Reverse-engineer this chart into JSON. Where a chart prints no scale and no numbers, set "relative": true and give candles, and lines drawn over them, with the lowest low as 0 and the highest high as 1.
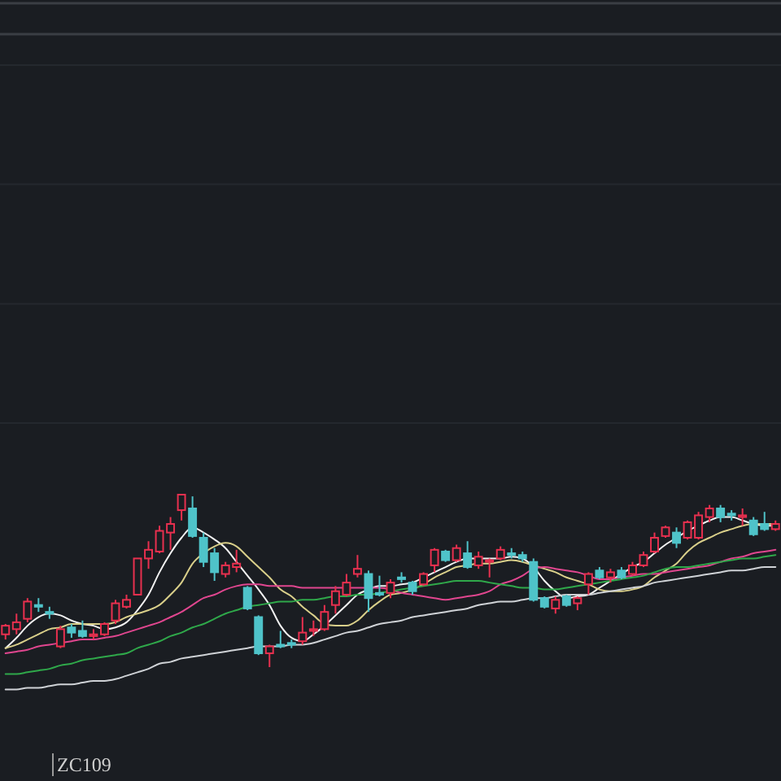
{
  "chart_data": {
    "type": "candlestick",
    "relative": true,
    "categories": [
      null,
      null,
      null,
      null,
      null,
      null,
      null,
      null,
      null,
      null,
      null,
      null,
      null,
      null,
      null,
      null,
      null,
      null,
      null,
      null,
      null,
      null,
      null,
      null,
      null,
      null,
      null,
      null,
      null,
      null,
      null,
      null,
      null,
      null,
      null,
      null,
      null,
      null,
      null,
      null,
      null,
      null,
      null,
      null,
      null,
      null,
      null,
      null,
      null,
      null,
      null,
      null,
      null,
      null,
      null,
      null,
      null,
      null,
      null,
      null,
      null,
      null,
      null,
      null,
      null,
      null,
      null,
      null,
      null,
      null,
      null
    ],
    "ohlc": [
      [
        0.19,
        0.25,
        0.16,
        0.24
      ],
      [
        0.22,
        0.31,
        0.19,
        0.26
      ],
      [
        0.28,
        0.4,
        0.26,
        0.38
      ],
      [
        0.36,
        0.4,
        0.32,
        0.35
      ],
      [
        0.32,
        0.35,
        0.28,
        0.31
      ],
      [
        0.12,
        0.24,
        0.11,
        0.22
      ],
      [
        0.23,
        0.25,
        0.17,
        0.2
      ],
      [
        0.21,
        0.27,
        0.17,
        0.18
      ],
      [
        0.18,
        0.22,
        0.16,
        0.19
      ],
      [
        0.19,
        0.26,
        0.18,
        0.25
      ],
      [
        0.27,
        0.39,
        0.25,
        0.37
      ],
      [
        0.35,
        0.42,
        0.34,
        0.39
      ],
      [
        0.42,
        0.63,
        0.42,
        0.63
      ],
      [
        0.63,
        0.73,
        0.57,
        0.68
      ],
      [
        0.67,
        0.82,
        0.66,
        0.79
      ],
      [
        0.78,
        0.87,
        0.68,
        0.83
      ],
      [
        0.91,
        1,
        0.85,
        1
      ],
      [
        0.92,
        0.99,
        0.75,
        0.76
      ],
      [
        0.75,
        0.78,
        0.58,
        0.61
      ],
      [
        0.66,
        0.69,
        0.5,
        0.55
      ],
      [
        0.54,
        0.61,
        0.52,
        0.59
      ],
      [
        0.58,
        0.68,
        0.55,
        0.6
      ],
      [
        0.46,
        0.47,
        0.33,
        0.34
      ],
      [
        0.29,
        0.3,
        0.07,
        0.08
      ],
      [
        0.08,
        0.13,
        0,
        0.12
      ],
      [
        0.13,
        0.21,
        0.11,
        0.12
      ],
      [
        0.14,
        0.16,
        0.11,
        0.13
      ],
      [
        0.15,
        0.29,
        0.13,
        0.2
      ],
      [
        0.21,
        0.27,
        0.18,
        0.22
      ],
      [
        0.22,
        0.36,
        0.21,
        0.32
      ],
      [
        0.36,
        0.47,
        0.31,
        0.44
      ],
      [
        0.42,
        0.54,
        0.41,
        0.49
      ],
      [
        0.54,
        0.65,
        0.52,
        0.57
      ],
      [
        0.54,
        0.56,
        0.32,
        0.4
      ],
      [
        0.43,
        0.53,
        0.41,
        0.42
      ],
      [
        0.43,
        0.51,
        0.4,
        0.49
      ],
      [
        0.52,
        0.55,
        0.49,
        0.51
      ],
      [
        0.49,
        0.5,
        0.42,
        0.44
      ],
      [
        0.48,
        0.55,
        0.47,
        0.54
      ],
      [
        0.59,
        0.69,
        0.55,
        0.68
      ],
      [
        0.67,
        0.68,
        0.61,
        0.62
      ],
      [
        0.62,
        0.71,
        0.61,
        0.69
      ],
      [
        0.66,
        0.73,
        0.57,
        0.58
      ],
      [
        0.59,
        0.67,
        0.57,
        0.64
      ],
      [
        0.61,
        0.63,
        0.52,
        0.62
      ],
      [
        0.63,
        0.7,
        0.62,
        0.68
      ],
      [
        0.66,
        0.69,
        0.63,
        0.65
      ],
      [
        0.65,
        0.67,
        0.61,
        0.63
      ],
      [
        0.61,
        0.63,
        0.38,
        0.39
      ],
      [
        0.4,
        0.41,
        0.34,
        0.35
      ],
      [
        0.34,
        0.41,
        0.31,
        0.39
      ],
      [
        0.41,
        0.42,
        0.35,
        0.36
      ],
      [
        0.37,
        0.41,
        0.33,
        0.4
      ],
      [
        0.48,
        0.55,
        0.42,
        0.54
      ],
      [
        0.56,
        0.58,
        0.51,
        0.52
      ],
      [
        0.52,
        0.57,
        0.49,
        0.55
      ],
      [
        0.56,
        0.58,
        0.51,
        0.52
      ],
      [
        0.54,
        0.61,
        0.53,
        0.59
      ],
      [
        0.59,
        0.67,
        0.58,
        0.65
      ],
      [
        0.67,
        0.78,
        0.66,
        0.75
      ],
      [
        0.76,
        0.82,
        0.75,
        0.81
      ],
      [
        0.78,
        0.81,
        0.69,
        0.72
      ],
      [
        0.75,
        0.85,
        0.74,
        0.84
      ],
      [
        0.75,
        0.9,
        0.74,
        0.88
      ],
      [
        0.87,
        0.94,
        0.84,
        0.92
      ],
      [
        0.92,
        0.94,
        0.84,
        0.87
      ],
      [
        0.89,
        0.91,
        0.85,
        0.88
      ],
      [
        0.87,
        0.92,
        0.82,
        0.88
      ],
      [
        0.85,
        0.87,
        0.76,
        0.77
      ],
      [
        0.83,
        0.9,
        0.79,
        0.8
      ],
      [
        0.8,
        0.85,
        0.79,
        0.83
      ]
    ],
    "colors": [
      "#e8304f",
      "#e8304f",
      "#e8304f",
      "#4fc3c9",
      "#4fc3c9",
      "#e8304f",
      "#4fc3c9",
      "#4fc3c9",
      "#e8304f",
      "#e8304f",
      "#e8304f",
      "#e8304f",
      "#e8304f",
      "#e8304f",
      "#e8304f",
      "#e8304f",
      "#e8304f",
      "#4fc3c9",
      "#4fc3c9",
      "#4fc3c9",
      "#e8304f",
      "#e8304f",
      "#4fc3c9",
      "#4fc3c9",
      "#e8304f",
      "#4fc3c9",
      "#4fc3c9",
      "#e8304f",
      "#e8304f",
      "#e8304f",
      "#e8304f",
      "#e8304f",
      "#e8304f",
      "#4fc3c9",
      "#4fc3c9",
      "#e8304f",
      "#4fc3c9",
      "#4fc3c9",
      "#e8304f",
      "#e8304f",
      "#4fc3c9",
      "#e8304f",
      "#4fc3c9",
      "#e8304f",
      "#e8304f",
      "#e8304f",
      "#4fc3c9",
      "#4fc3c9",
      "#4fc3c9",
      "#4fc3c9",
      "#e8304f",
      "#4fc3c9",
      "#e8304f",
      "#e8304f",
      "#4fc3c9",
      "#e8304f",
      "#4fc3c9",
      "#e8304f",
      "#e8304f",
      "#e8304f",
      "#e8304f",
      "#4fc3c9",
      "#e8304f",
      "#e8304f",
      "#e8304f",
      "#4fc3c9",
      "#4fc3c9",
      "#e8304f",
      "#4fc3c9",
      "#4fc3c9",
      "#e8304f"
    ],
    "series": [
      {
        "type": "line",
        "color": "#f2f2f2",
        "values": [
          0.11,
          0.17,
          0.24,
          0.29,
          0.31,
          0.3,
          0.27,
          0.25,
          0.24,
          0.22,
          0.23,
          0.26,
          0.33,
          0.42,
          0.55,
          0.66,
          0.75,
          0.81,
          0.78,
          0.74,
          0.69,
          0.61,
          0.53,
          0.45,
          0.36,
          0.24,
          0.17,
          0.15,
          0.19,
          0.24,
          0.3,
          0.36,
          0.42,
          0.45,
          0.47,
          0.47,
          0.48,
          0.49,
          0.52,
          0.55,
          0.58,
          0.61,
          0.63,
          0.63,
          0.63,
          0.63,
          0.64,
          0.63,
          0.58,
          0.5,
          0.44,
          0.4,
          0.41,
          0.42,
          0.46,
          0.5,
          0.54,
          0.58,
          0.61,
          0.66,
          0.71,
          0.75,
          0.79,
          0.82,
          0.85,
          0.87,
          0.87,
          0.85,
          0.83,
          0.82,
          0.82
        ]
      },
      {
        "type": "line",
        "color": "#d9cf8a",
        "values": [
          0.11,
          0.13,
          0.16,
          0.19,
          0.22,
          0.23,
          0.25,
          0.25,
          0.25,
          0.25,
          0.26,
          0.29,
          0.31,
          0.33,
          0.36,
          0.42,
          0.49,
          0.6,
          0.66,
          0.7,
          0.72,
          0.7,
          0.64,
          0.58,
          0.52,
          0.45,
          0.41,
          0.35,
          0.3,
          0.25,
          0.24,
          0.24,
          0.27,
          0.33,
          0.38,
          0.42,
          0.43,
          0.45,
          0.48,
          0.52,
          0.55,
          0.58,
          0.59,
          0.6,
          0.6,
          0.61,
          0.62,
          0.61,
          0.59,
          0.57,
          0.55,
          0.52,
          0.5,
          0.48,
          0.45,
          0.44,
          0.44,
          0.45,
          0.47,
          0.52,
          0.56,
          0.6,
          0.67,
          0.72,
          0.75,
          0.78,
          0.8,
          0.82,
          0.83,
          0.83,
          0.83
        ]
      },
      {
        "type": "line",
        "color": "#e0468f",
        "values": [
          0.08,
          0.09,
          0.1,
          0.12,
          0.13,
          0.14,
          0.15,
          0.16,
          0.16,
          0.17,
          0.18,
          0.2,
          0.22,
          0.24,
          0.26,
          0.29,
          0.32,
          0.36,
          0.4,
          0.42,
          0.45,
          0.47,
          0.48,
          0.48,
          0.47,
          0.47,
          0.47,
          0.46,
          0.46,
          0.46,
          0.46,
          0.46,
          0.46,
          0.46,
          0.46,
          0.45,
          0.43,
          0.42,
          0.41,
          0.4,
          0.39,
          0.4,
          0.41,
          0.42,
          0.44,
          0.48,
          0.5,
          0.53,
          0.57,
          0.58,
          0.57,
          0.56,
          0.55,
          0.53,
          0.51,
          0.51,
          0.52,
          0.53,
          0.54,
          0.54,
          0.55,
          0.56,
          0.57,
          0.58,
          0.59,
          0.61,
          0.63,
          0.64,
          0.66,
          0.67,
          0.68
        ]
      },
      {
        "type": "line",
        "color": "#2fa84a",
        "values": [
          -0.04,
          -0.04,
          -0.03,
          -0.02,
          -0.01,
          0.01,
          0.02,
          0.04,
          0.05,
          0.06,
          0.07,
          0.08,
          0.11,
          0.13,
          0.15,
          0.18,
          0.2,
          0.23,
          0.25,
          0.28,
          0.31,
          0.33,
          0.35,
          0.36,
          0.37,
          0.38,
          0.38,
          0.39,
          0.39,
          0.4,
          0.41,
          0.41,
          0.42,
          0.42,
          0.43,
          0.44,
          0.45,
          0.46,
          0.47,
          0.48,
          0.49,
          0.5,
          0.5,
          0.5,
          0.49,
          0.48,
          0.47,
          0.46,
          0.46,
          0.45,
          0.45,
          0.46,
          0.47,
          0.48,
          0.49,
          0.5,
          0.51,
          0.52,
          0.53,
          0.55,
          0.57,
          0.58,
          0.58,
          0.59,
          0.6,
          0.61,
          0.62,
          0.63,
          0.63,
          0.64,
          0.65
        ]
      },
      {
        "type": "line",
        "color": "#cfd2d6",
        "values": [
          -0.13,
          -0.13,
          -0.12,
          -0.12,
          -0.11,
          -0.1,
          -0.1,
          -0.09,
          -0.08,
          -0.08,
          -0.07,
          -0.05,
          -0.03,
          -0.01,
          0.02,
          0.03,
          0.05,
          0.06,
          0.07,
          0.08,
          0.09,
          0.1,
          0.11,
          0.12,
          0.12,
          0.12,
          0.13,
          0.13,
          0.14,
          0.16,
          0.18,
          0.2,
          0.21,
          0.23,
          0.25,
          0.26,
          0.27,
          0.29,
          0.3,
          0.31,
          0.32,
          0.33,
          0.34,
          0.36,
          0.37,
          0.38,
          0.38,
          0.39,
          0.4,
          0.4,
          0.41,
          0.42,
          0.42,
          0.42,
          0.43,
          0.44,
          0.45,
          0.46,
          0.47,
          0.49,
          0.5,
          0.51,
          0.52,
          0.53,
          0.54,
          0.55,
          0.56,
          0.56,
          0.57,
          0.58,
          0.58
        ]
      }
    ],
    "annotations": [
      "ZC109"
    ]
  }
}
